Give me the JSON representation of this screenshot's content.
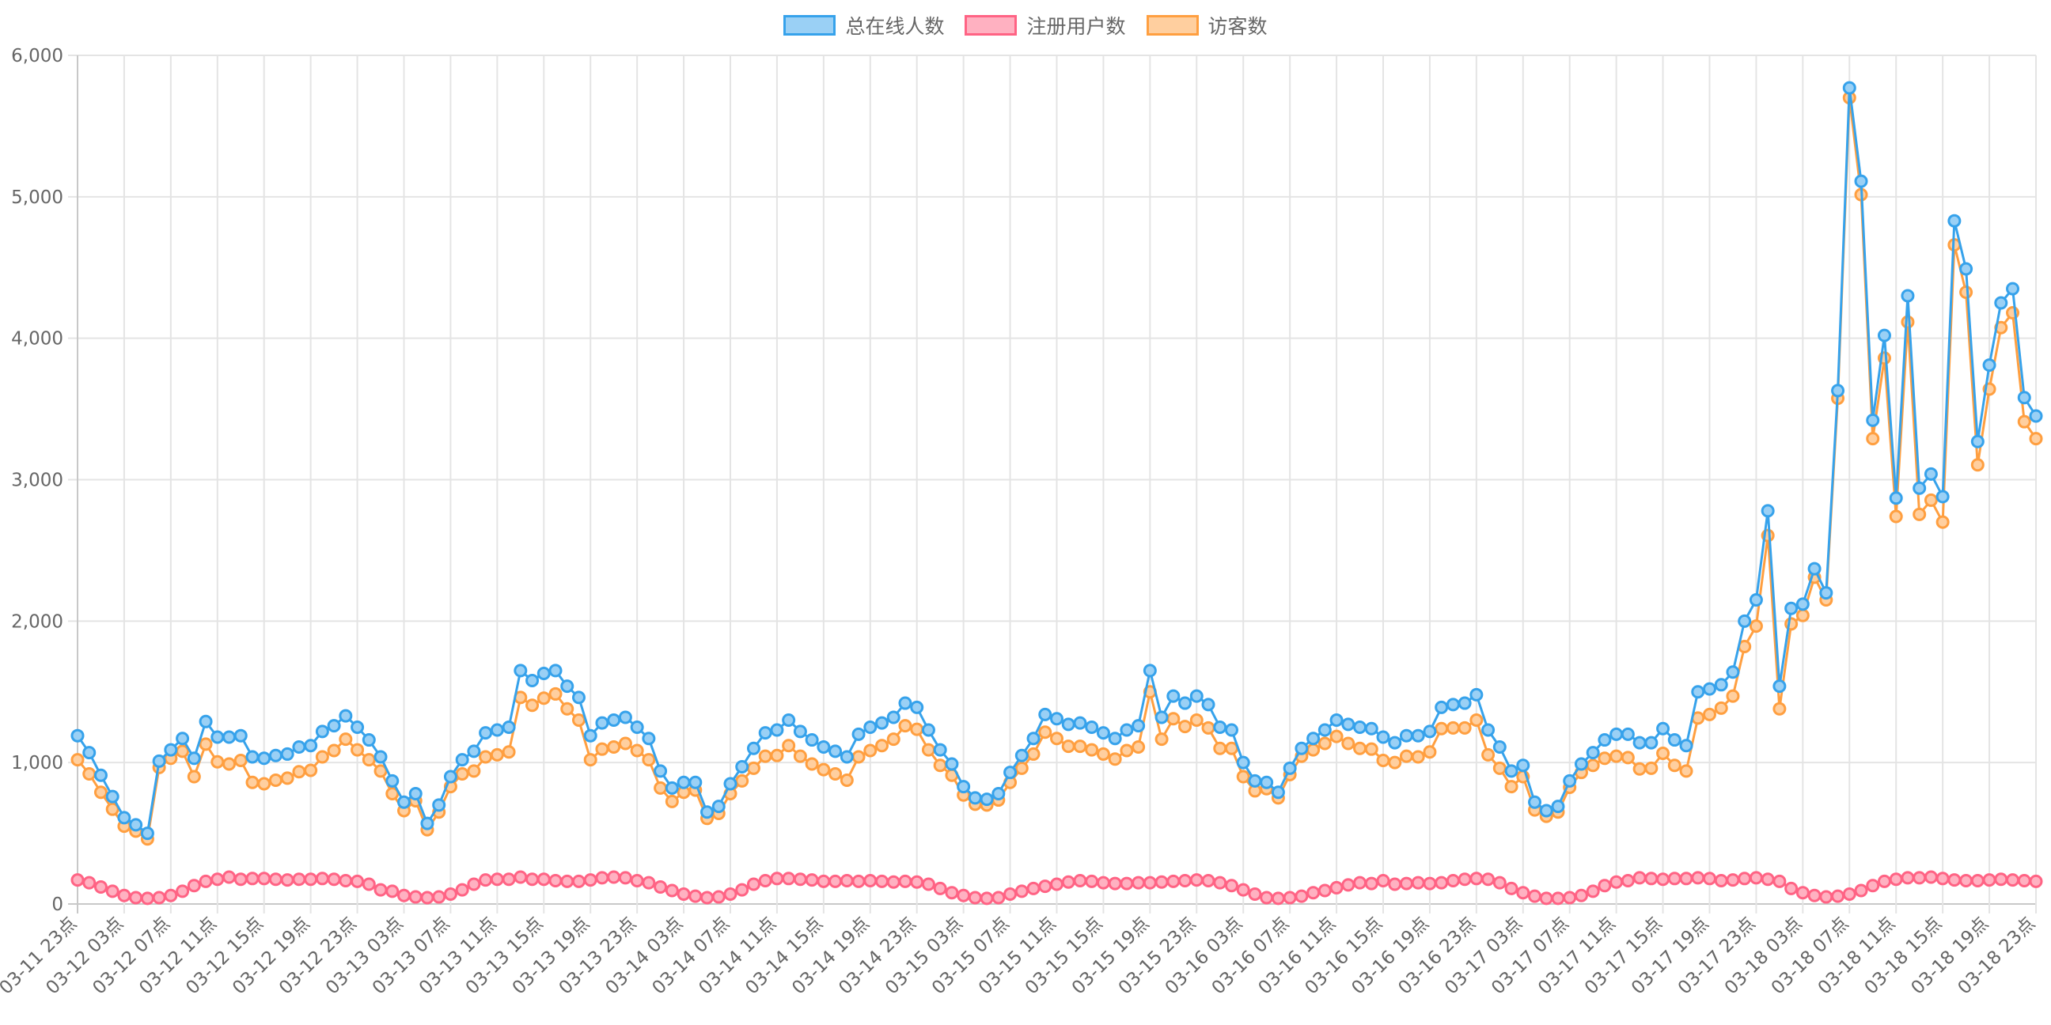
{
  "legend": [
    {
      "name": "总在线人数",
      "stroke": "#36a2eb",
      "fill": "#9ad0f5"
    },
    {
      "name": "注册用户数",
      "stroke": "#ff6384",
      "fill": "#ffb1c1"
    },
    {
      "name": "访客数",
      "stroke": "#ff9f40",
      "fill": "#ffcf9f"
    }
  ],
  "chart_data": {
    "type": "line",
    "ylim": [
      0,
      6000
    ],
    "yticks": [
      "0",
      "1,000",
      "2,000",
      "3,000",
      "4,000",
      "5,000",
      "6,000"
    ],
    "grid": true,
    "legend_position": "top",
    "categories": [
      "03-11 23点",
      "03-12 00点",
      "03-12 01点",
      "03-12 02点",
      "03-12 03点",
      "03-12 04点",
      "03-12 05点",
      "03-12 06点",
      "03-12 07点",
      "03-12 08点",
      "03-12 09点",
      "03-12 10点",
      "03-12 11点",
      "03-12 12点",
      "03-12 13点",
      "03-12 14点",
      "03-12 15点",
      "03-12 16点",
      "03-12 17点",
      "03-12 18点",
      "03-12 19点",
      "03-12 20点",
      "03-12 21点",
      "03-12 22点",
      "03-12 23点",
      "03-13 00点",
      "03-13 01点",
      "03-13 02点",
      "03-13 03点",
      "03-13 04点",
      "03-13 05点",
      "03-13 06点",
      "03-13 07点",
      "03-13 08点",
      "03-13 09点",
      "03-13 10点",
      "03-13 11点",
      "03-13 12点",
      "03-13 13点",
      "03-13 14点",
      "03-13 15点",
      "03-13 16点",
      "03-13 17点",
      "03-13 18点",
      "03-13 19点",
      "03-13 20点",
      "03-13 21点",
      "03-13 22点",
      "03-13 23点",
      "03-14 00点",
      "03-14 01点",
      "03-14 02点",
      "03-14 03点",
      "03-14 04点",
      "03-14 05点",
      "03-14 06点",
      "03-14 07点",
      "03-14 08点",
      "03-14 09点",
      "03-14 10点",
      "03-14 11点",
      "03-14 12点",
      "03-14 13点",
      "03-14 14点",
      "03-14 15点",
      "03-14 16点",
      "03-14 17点",
      "03-14 18点",
      "03-14 19点",
      "03-14 20点",
      "03-14 21点",
      "03-14 22点",
      "03-14 23点",
      "03-15 00点",
      "03-15 01点",
      "03-15 02点",
      "03-15 03点",
      "03-15 04点",
      "03-15 05点",
      "03-15 06点",
      "03-15 07点",
      "03-15 08点",
      "03-15 09点",
      "03-15 10点",
      "03-15 11点",
      "03-15 12点",
      "03-15 13点",
      "03-15 14点",
      "03-15 15点",
      "03-15 16点",
      "03-15 17点",
      "03-15 18点",
      "03-15 19点",
      "03-15 20点",
      "03-15 21点",
      "03-15 22点",
      "03-15 23点",
      "03-16 00点",
      "03-16 01点",
      "03-16 02点",
      "03-16 03点",
      "03-16 04点",
      "03-16 05点",
      "03-16 06点",
      "03-16 07点",
      "03-16 08点",
      "03-16 09点",
      "03-16 10点",
      "03-16 11点",
      "03-16 12点",
      "03-16 13点",
      "03-16 14点",
      "03-16 15点",
      "03-16 16点",
      "03-16 17点",
      "03-16 18点",
      "03-16 19点",
      "03-16 20点",
      "03-16 21点",
      "03-16 22点",
      "03-16 23点",
      "03-17 00点",
      "03-17 01点",
      "03-17 02点",
      "03-17 03点",
      "03-17 04点",
      "03-17 05点",
      "03-17 06点",
      "03-17 07点",
      "03-17 08点",
      "03-17 09点",
      "03-17 10点",
      "03-17 11点",
      "03-17 12点",
      "03-17 13点",
      "03-17 14点",
      "03-17 15点",
      "03-17 16点",
      "03-17 17点",
      "03-17 18点",
      "03-17 19点",
      "03-17 20点",
      "03-17 21点",
      "03-17 22点",
      "03-17 23点",
      "03-18 00点",
      "03-18 01点",
      "03-18 02点",
      "03-18 03点",
      "03-18 04点",
      "03-18 05点",
      "03-18 06点",
      "03-18 07点",
      "03-18 08点",
      "03-18 09点",
      "03-18 10点",
      "03-18 11点",
      "03-18 12点",
      "03-18 13点",
      "03-18 14点",
      "03-18 15点",
      "03-18 16点",
      "03-18 17点",
      "03-18 18点",
      "03-18 19点",
      "03-18 20点",
      "03-18 21点",
      "03-18 22点",
      "03-18 23点"
    ],
    "series": [
      {
        "name": "总在线人数",
        "values": [
          1190,
          1070,
          910,
          760,
          610,
          560,
          500,
          1010,
          1090,
          1170,
          1030,
          1290,
          1180,
          1180,
          1190,
          1040,
          1030,
          1050,
          1060,
          1110,
          1120,
          1220,
          1260,
          1330,
          1250,
          1160,
          1040,
          870,
          720,
          780,
          570,
          700,
          900,
          1020,
          1080,
          1210,
          1230,
          1250,
          1650,
          1580,
          1630,
          1650,
          1540,
          1460,
          1190,
          1280,
          1300,
          1320,
          1250,
          1170,
          940,
          820,
          860,
          860,
          650,
          690,
          850,
          970,
          1100,
          1210,
          1230,
          1300,
          1220,
          1160,
          1110,
          1080,
          1040,
          1200,
          1250,
          1280,
          1320,
          1420,
          1390,
          1230,
          1090,
          990,
          830,
          750,
          740,
          780,
          930,
          1050,
          1170,
          1340,
          1310,
          1270,
          1280,
          1250,
          1210,
          1170,
          1230,
          1260,
          1650,
          1320,
          1470,
          1420,
          1470,
          1410,
          1250,
          1230,
          1000,
          870,
          860,
          790,
          960,
          1100,
          1170,
          1230,
          1300,
          1270,
          1250,
          1240,
          1180,
          1140,
          1190,
          1190,
          1220,
          1390,
          1410,
          1420,
          1480,
          1230,
          1110,
          940,
          980,
          720,
          660,
          690,
          870,
          990,
          1070,
          1160,
          1200,
          1200,
          1140,
          1140,
          1240,
          1160,
          1120,
          1500,
          1520,
          1550,
          1640,
          2000,
          2150,
          2780,
          1540,
          2090,
          2120,
          2370,
          2200,
          3630,
          5770,
          5110,
          3420,
          4020,
          2870,
          4300,
          2940,
          3040,
          2880,
          4830,
          4490,
          3270,
          3810,
          4250,
          4350,
          3580,
          3450
        ]
      },
      {
        "name": "注册用户数",
        "values": [
          170,
          150,
          120,
          90,
          60,
          45,
          40,
          45,
          60,
          90,
          130,
          160,
          175,
          190,
          175,
          180,
          180,
          175,
          170,
          175,
          175,
          180,
          175,
          165,
          160,
          140,
          100,
          90,
          60,
          50,
          45,
          50,
          70,
          100,
          140,
          170,
          175,
          175,
          190,
          175,
          175,
          165,
          160,
          160,
          170,
          185,
          190,
          185,
          165,
          150,
          120,
          95,
          70,
          55,
          45,
          50,
          70,
          100,
          140,
          165,
          180,
          180,
          175,
          170,
          160,
          160,
          165,
          160,
          165,
          160,
          155,
          160,
          155,
          140,
          110,
          80,
          60,
          45,
          40,
          45,
          70,
          90,
          110,
          125,
          140,
          155,
          165,
          160,
          150,
          145,
          145,
          150,
          150,
          155,
          160,
          165,
          170,
          165,
          150,
          130,
          100,
          70,
          45,
          40,
          45,
          55,
          80,
          95,
          115,
          135,
          150,
          145,
          165,
          140,
          145,
          150,
          145,
          150,
          165,
          175,
          180,
          175,
          150,
          110,
          80,
          55,
          40,
          40,
          45,
          60,
          90,
          130,
          155,
          165,
          185,
          180,
          175,
          180,
          180,
          185,
          180,
          165,
          170,
          180,
          185,
          175,
          160,
          110,
          80,
          60,
          50,
          55,
          70,
          95,
          130,
          160,
          175,
          185,
          185,
          190,
          180,
          170,
          165,
          165,
          170,
          175,
          170,
          165,
          160
        ]
      },
      {
        "name": "访客数",
        "values": [
          1020,
          920,
          790,
          670,
          550,
          515,
          460,
          965,
          1030,
          1080,
          900,
          1130,
          1005,
          990,
          1015,
          860,
          850,
          875,
          890,
          935,
          945,
          1040,
          1085,
          1165,
          1090,
          1020,
          940,
          780,
          660,
          730,
          525,
          650,
          830,
          920,
          940,
          1040,
          1055,
          1075,
          1460,
          1405,
          1455,
          1485,
          1380,
          1300,
          1020,
          1095,
          1110,
          1135,
          1085,
          1020,
          820,
          725,
          790,
          805,
          605,
          640,
          780,
          870,
          960,
          1045,
          1050,
          1120,
          1045,
          990,
          950,
          920,
          875,
          1040,
          1085,
          1120,
          1165,
          1260,
          1235,
          1090,
          980,
          910,
          770,
          705,
          700,
          735,
          860,
          960,
          1060,
          1215,
          1170,
          1115,
          1115,
          1090,
          1060,
          1025,
          1085,
          1110,
          1500,
          1165,
          1310,
          1255,
          1300,
          1245,
          1100,
          1100,
          900,
          800,
          815,
          750,
          915,
          1045,
          1090,
          1135,
          1185,
          1135,
          1100,
          1095,
          1015,
          1000,
          1045,
          1040,
          1075,
          1240,
          1245,
          1245,
          1300,
          1055,
          960,
          830,
          900,
          665,
          620,
          650,
          825,
          930,
          980,
          1030,
          1045,
          1035,
          955,
          960,
          1065,
          980,
          940,
          1315,
          1340,
          1385,
          1470,
          1820,
          1965,
          2605,
          1380,
          1980,
          2040,
          2310,
          2150,
          3575,
          5700,
          5015,
          3290,
          3860,
          2740,
          4115,
          2755,
          2855,
          2700,
          4660,
          4325,
          3105,
          3640,
          4075,
          4180,
          3410,
          3290
        ]
      }
    ]
  }
}
